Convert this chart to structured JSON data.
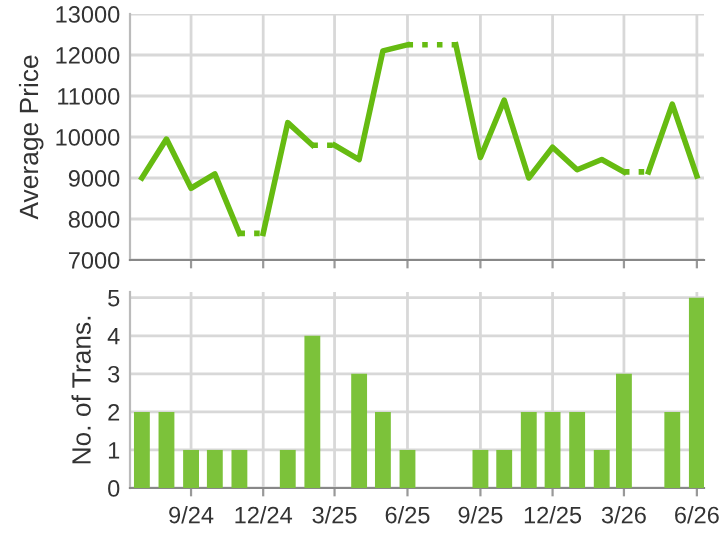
{
  "chart_data": [
    {
      "type": "line",
      "ylabel": "Average Price",
      "xlim": [
        "2024-06-16",
        "2026-06-10"
      ],
      "ylim": [
        7000,
        13000
      ],
      "yticks": [
        7000,
        8000,
        9000,
        10000,
        11000,
        12000,
        13000
      ],
      "xticks": [
        {
          "value": "2024-09",
          "label": null
        },
        {
          "value": "2024-12",
          "label": null
        },
        {
          "value": "2025-03",
          "label": null
        },
        {
          "value": "2025-06",
          "label": null
        },
        {
          "value": "2025-09",
          "label": null
        },
        {
          "value": "2025-12",
          "label": null
        },
        {
          "value": "2026-03",
          "label": null
        },
        {
          "value": "2026-06",
          "label": null
        }
      ],
      "tick_labels": "y",
      "grid": true,
      "marker": "none",
      "series": [
        {
          "color": "#66bb11",
          "line_style": "solid",
          "x": [
            "2024-07",
            "2024-08",
            "2024-09",
            "2024-10",
            "2024-11"
          ],
          "values": [
            9000,
            9950,
            8750,
            9100,
            7650
          ]
        },
        {
          "color": "#66bb11",
          "line_style": "dotted",
          "x": [
            "2024-11",
            "2024-12"
          ],
          "values": [
            7650,
            7650
          ]
        },
        {
          "color": "#66bb11",
          "line_style": "solid",
          "x": [
            "2024-12",
            "2025-01",
            "2025-02"
          ],
          "values": [
            7650,
            10350,
            9800
          ]
        },
        {
          "color": "#66bb11",
          "line_style": "dotted",
          "x": [
            "2025-02",
            "2025-03"
          ],
          "values": [
            9800,
            9800
          ]
        },
        {
          "color": "#66bb11",
          "line_style": "solid",
          "x": [
            "2025-03",
            "2025-04",
            "2025-05",
            "2025-06"
          ],
          "values": [
            9800,
            9450,
            12100,
            12250
          ]
        },
        {
          "color": "#66bb11",
          "line_style": "dotted",
          "x": [
            "2025-06",
            "2025-07",
            "2025-08"
          ],
          "values": [
            12250,
            12250,
            12250
          ]
        },
        {
          "color": "#66bb11",
          "line_style": "solid",
          "x": [
            "2025-08",
            "2025-09",
            "2025-10",
            "2025-11",
            "2025-12",
            "2026-01",
            "2026-02",
            "2026-03"
          ],
          "values": [
            12250,
            9500,
            10900,
            9000,
            9750,
            9200,
            9450,
            9150
          ]
        },
        {
          "color": "#66bb11",
          "line_style": "dotted",
          "x": [
            "2026-03",
            "2026-04"
          ],
          "values": [
            9150,
            9150
          ]
        },
        {
          "color": "#66bb11",
          "line_style": "solid",
          "x": [
            "2026-04",
            "2026-05",
            "2026-06"
          ],
          "values": [
            9150,
            10800,
            9050
          ]
        }
      ]
    },
    {
      "type": "bar",
      "ylabel": "No. of Trans.",
      "xlim": [
        "2024-06-16",
        "2026-06-10"
      ],
      "ylim": [
        0,
        5.15
      ],
      "yticks": [
        0,
        1,
        2,
        3,
        4,
        5
      ],
      "xticks": [
        {
          "value": "2024-09",
          "label": "9/24"
        },
        {
          "value": "2024-12",
          "label": "12/24"
        },
        {
          "value": "2025-03",
          "label": "3/25"
        },
        {
          "value": "2025-06",
          "label": "6/25"
        },
        {
          "value": "2025-09",
          "label": "9/25"
        },
        {
          "value": "2025-12",
          "label": "12/25"
        },
        {
          "value": "2026-03",
          "label": "3/26"
        },
        {
          "value": "2026-06",
          "label": "6/26"
        }
      ],
      "grid": true,
      "color": "#7cc23a",
      "x": [
        "2024-07",
        "2024-08",
        "2024-09",
        "2024-10",
        "2024-11",
        "2024-12",
        "2025-01",
        "2025-02",
        "2025-03",
        "2025-04",
        "2025-05",
        "2025-06",
        "2025-07",
        "2025-08",
        "2025-09",
        "2025-10",
        "2025-11",
        "2025-12",
        "2026-01",
        "2026-02",
        "2026-03",
        "2026-04",
        "2026-05",
        "2026-06"
      ],
      "values": [
        2,
        2,
        1,
        1,
        1,
        0,
        1,
        4,
        0,
        3,
        2,
        1,
        0,
        0,
        1,
        1,
        2,
        2,
        2,
        1,
        3,
        0,
        2,
        5
      ]
    }
  ]
}
